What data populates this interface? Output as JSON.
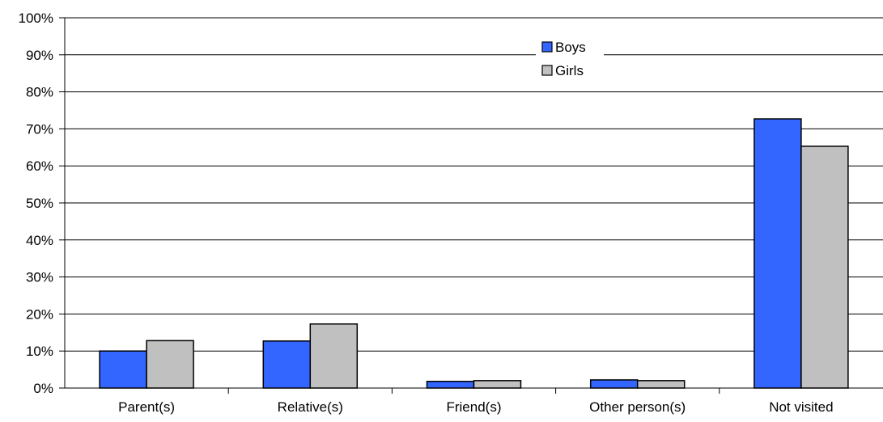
{
  "chart_data": {
    "type": "bar",
    "categories": [
      "Parent(s)",
      "Relative(s)",
      "Friend(s)",
      "Other person(s)",
      "Not visited"
    ],
    "series": [
      {
        "name": "Boys",
        "values": [
          10,
          12.7,
          1.8,
          2.2,
          72.7
        ],
        "color": "#3366FF"
      },
      {
        "name": "Girls",
        "values": [
          12.8,
          17.3,
          2.0,
          2.0,
          65.3
        ],
        "color": "#C0C0C0"
      }
    ],
    "y_ticks": [
      "0%",
      "10%",
      "20%",
      "30%",
      "40%",
      "50%",
      "60%",
      "70%",
      "80%",
      "90%",
      "100%"
    ],
    "ylim": [
      0,
      100
    ],
    "grid": true,
    "legend_position": "top-center",
    "title": "",
    "xlabel": "",
    "ylabel": ""
  }
}
